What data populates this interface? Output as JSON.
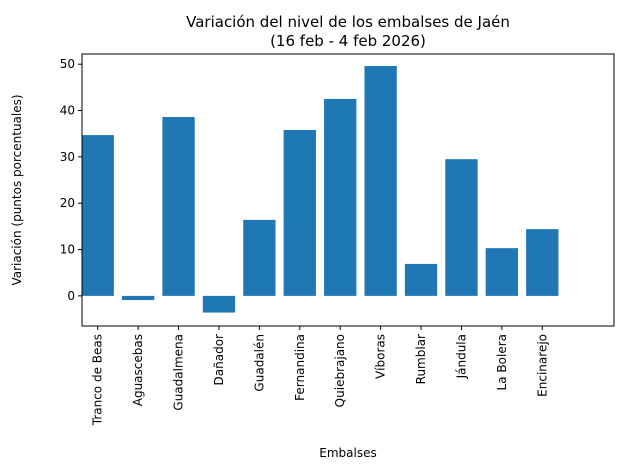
{
  "chart_data": {
    "type": "bar",
    "title": "Variación del nivel de los embalses de Jaén",
    "subtitle": "(16 feb - 4 feb 2026)",
    "xlabel": "Embalses",
    "ylabel": "Variación (puntos porcentuales)",
    "categories": [
      "Tranco de Beas",
      "Aguascebas",
      "Guadalmena",
      "Dañador",
      "Guadalén",
      "Fernandina",
      "Quiebrajano",
      "Víboras",
      "Rumblar",
      "Jándula",
      "La Bolera",
      "Encinarejo"
    ],
    "values": [
      34.7,
      -0.9,
      38.6,
      -3.6,
      16.4,
      35.8,
      42.5,
      49.6,
      6.9,
      29.5,
      10.3,
      14.4
    ],
    "yticks": [
      0,
      10,
      20,
      30,
      40,
      50
    ],
    "ylim": [
      -6.5,
      52.2
    ],
    "grid": false,
    "color": "#1f77b4"
  }
}
